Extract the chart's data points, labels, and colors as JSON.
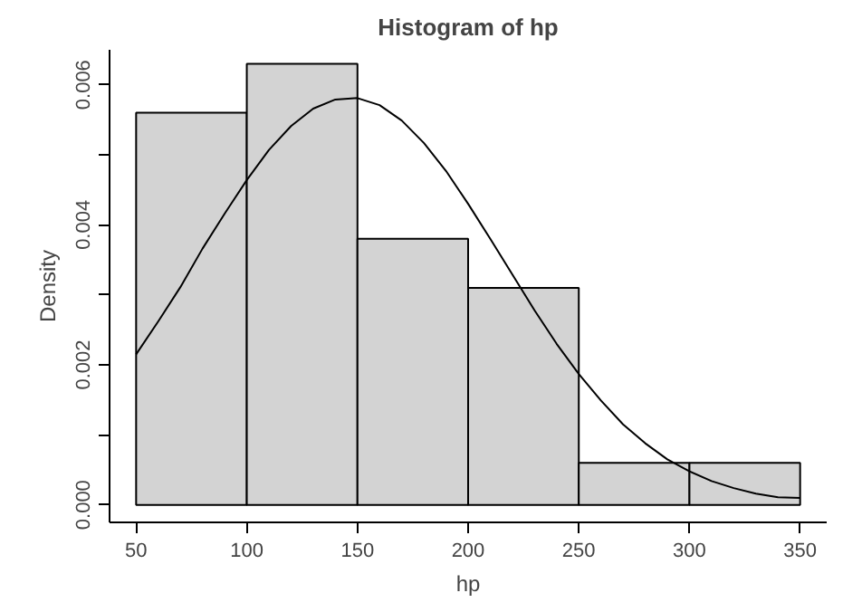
{
  "chart_data": {
    "type": "histogram",
    "title": "Histogram of hp",
    "xlabel": "hp",
    "ylabel": "Density",
    "bins": [
      50,
      100,
      150,
      200,
      250,
      300,
      350
    ],
    "values": [
      0.0056,
      0.0063,
      0.0038,
      0.0031,
      0.0006,
      0.0006
    ],
    "color": "#d3d3d3",
    "series": [
      {
        "type": "line",
        "color": "#000000",
        "x": [
          50,
          60,
          70,
          80,
          90,
          100,
          110,
          120,
          130,
          140,
          150,
          160,
          170,
          180,
          190,
          200,
          210,
          220,
          230,
          240,
          250,
          260,
          270,
          280,
          290,
          300,
          310,
          320,
          330,
          340,
          350
        ],
        "values": [
          0.00215,
          0.00262,
          0.00311,
          0.00366,
          0.00416,
          0.00464,
          0.00507,
          0.00541,
          0.00566,
          0.00579,
          0.00581,
          0.00571,
          0.00549,
          0.00517,
          0.00477,
          0.0043,
          0.0038,
          0.00329,
          0.00278,
          0.0023,
          0.00187,
          0.00149,
          0.00115,
          0.00088,
          0.00065,
          0.00048,
          0.00034,
          0.00024,
          0.00016,
          0.00011,
          0.0001
        ]
      }
    ],
    "xlim": [
      38,
      362
    ],
    "ylim": [
      -0.00025,
      0.0065
    ],
    "xticks": [
      50,
      100,
      150,
      200,
      250,
      300,
      350
    ],
    "yticks": [
      {
        "value": 0,
        "label": "0.000"
      },
      {
        "value": 0.001,
        "label": null
      },
      {
        "value": 0.002,
        "label": "0.002"
      },
      {
        "value": 0.003,
        "label": null
      },
      {
        "value": 0.004,
        "label": "0.004"
      },
      {
        "value": 0.005,
        "label": null
      },
      {
        "value": 0.006,
        "label": "0.006"
      }
    ],
    "grid": false
  }
}
